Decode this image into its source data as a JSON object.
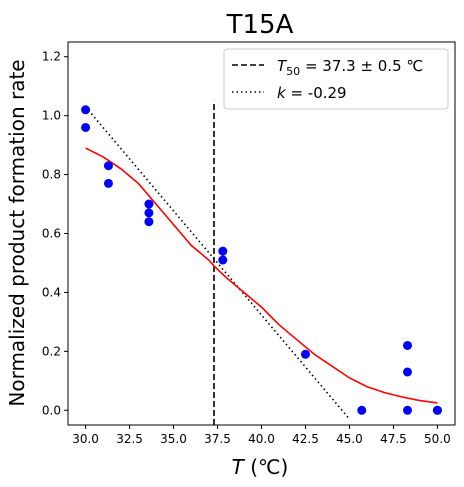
{
  "chart_data": {
    "type": "scatter",
    "title": "T15A",
    "xlabel_italic": "T",
    "xlabel_rest": " (℃)",
    "ylabel": "Normalized product formation rate",
    "xlim": [
      29.0,
      51.0
    ],
    "ylim": [
      -0.05,
      1.25
    ],
    "xticks": [
      30.0,
      32.5,
      35.0,
      37.5,
      40.0,
      42.5,
      45.0,
      47.5,
      50.0
    ],
    "xtick_labels": [
      "30.0",
      "32.5",
      "35.0",
      "37.5",
      "40.0",
      "42.5",
      "45.0",
      "47.5",
      "50.0"
    ],
    "yticks": [
      0.0,
      0.2,
      0.4,
      0.6,
      0.8,
      1.0,
      1.2
    ],
    "ytick_labels": [
      "0.0",
      "0.2",
      "0.4",
      "0.6",
      "0.8",
      "1.0",
      "1.2"
    ],
    "points": [
      {
        "x": 30.0,
        "y": 1.02
      },
      {
        "x": 30.0,
        "y": 0.96
      },
      {
        "x": 31.3,
        "y": 0.83
      },
      {
        "x": 31.3,
        "y": 0.77
      },
      {
        "x": 33.6,
        "y": 0.7
      },
      {
        "x": 33.6,
        "y": 0.67
      },
      {
        "x": 33.6,
        "y": 0.64
      },
      {
        "x": 37.8,
        "y": 0.54
      },
      {
        "x": 37.8,
        "y": 0.51
      },
      {
        "x": 42.5,
        "y": 0.19
      },
      {
        "x": 45.7,
        "y": 0.0
      },
      {
        "x": 48.3,
        "y": 0.22
      },
      {
        "x": 48.3,
        "y": 0.13
      },
      {
        "x": 48.3,
        "y": 0.0
      },
      {
        "x": 50.0,
        "y": 0.0
      },
      {
        "x": 50.0,
        "y": 0.0
      }
    ],
    "fit_curve": {
      "color": "#ff0000",
      "x": [
        30.0,
        31.0,
        32.0,
        33.0,
        34.0,
        35.0,
        36.0,
        37.0,
        37.3,
        38.0,
        39.0,
        40.0,
        41.0,
        42.0,
        43.0,
        44.0,
        45.0,
        46.0,
        47.0,
        48.0,
        49.0,
        50.0
      ],
      "y": [
        0.89,
        0.86,
        0.82,
        0.77,
        0.7,
        0.63,
        0.56,
        0.51,
        0.49,
        0.45,
        0.4,
        0.35,
        0.29,
        0.24,
        0.19,
        0.15,
        0.11,
        0.08,
        0.06,
        0.045,
        0.033,
        0.025
      ]
    },
    "t50_line": {
      "x": 37.3,
      "y_range": [
        -0.05,
        1.05
      ],
      "style": "dashed",
      "color": "#000000"
    },
    "slope_line": {
      "x": [
        30.0,
        45.0
      ],
      "y": [
        1.03,
        -0.03
      ],
      "style": "dotted",
      "color": "#000000"
    },
    "point_color": "#0000ff",
    "grid": false,
    "legend_position": "top-right",
    "legend": [
      {
        "style": "dashed",
        "sym": "T",
        "sub": "50",
        "rest": " = 37.3 ± 0.5 ℃"
      },
      {
        "style": "dotted",
        "sym": "k",
        "sub": "",
        "rest": " = -0.29"
      }
    ]
  }
}
